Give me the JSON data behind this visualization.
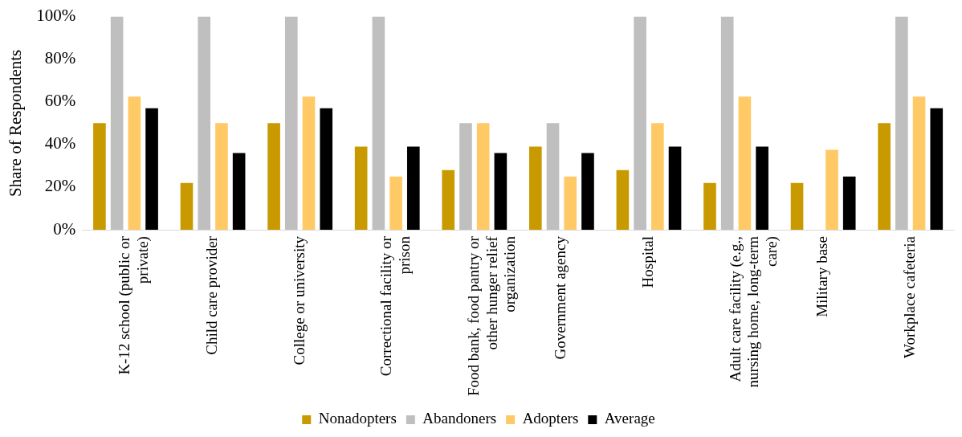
{
  "chart_data": {
    "type": "bar",
    "ylabel": "Share of Respondents",
    "categories": [
      "K-12 school (public or private)",
      "Child care provider",
      "College or university",
      "Correctional facility or prison",
      "Food bank, food pantry or other hunger relief organization",
      "Government agency",
      "Hospital",
      "Adult care facility (e.g., nursing home, long-term care)",
      "Military base",
      "Workplace cafeteria"
    ],
    "series": [
      {
        "name": "Nonadopters",
        "color": "#c89a00",
        "values": [
          50,
          22,
          50,
          39,
          28,
          39,
          28,
          22,
          22,
          50
        ]
      },
      {
        "name": "Abandoners",
        "color": "#bfbfbf",
        "values": [
          100,
          100,
          100,
          100,
          50,
          50,
          100,
          100,
          0,
          100
        ]
      },
      {
        "name": "Adopters",
        "color": "#ffc966",
        "values": [
          62.5,
          50,
          62.5,
          25,
          50,
          25,
          50,
          62.5,
          37.5,
          62.5
        ]
      },
      {
        "name": "Average",
        "color": "#000000",
        "values": [
          57,
          36,
          57,
          39,
          36,
          36,
          39,
          39,
          25,
          57
        ]
      }
    ],
    "ylim": [
      0,
      100
    ],
    "yticks": [
      {
        "value": 0,
        "label": "0%"
      },
      {
        "value": 20,
        "label": "20%"
      },
      {
        "value": 40,
        "label": "40%"
      },
      {
        "value": 60,
        "label": "60%"
      },
      {
        "value": 80,
        "label": "80%"
      },
      {
        "value": 100,
        "label": "100%"
      }
    ],
    "grid": false,
    "legend": "bottom"
  }
}
